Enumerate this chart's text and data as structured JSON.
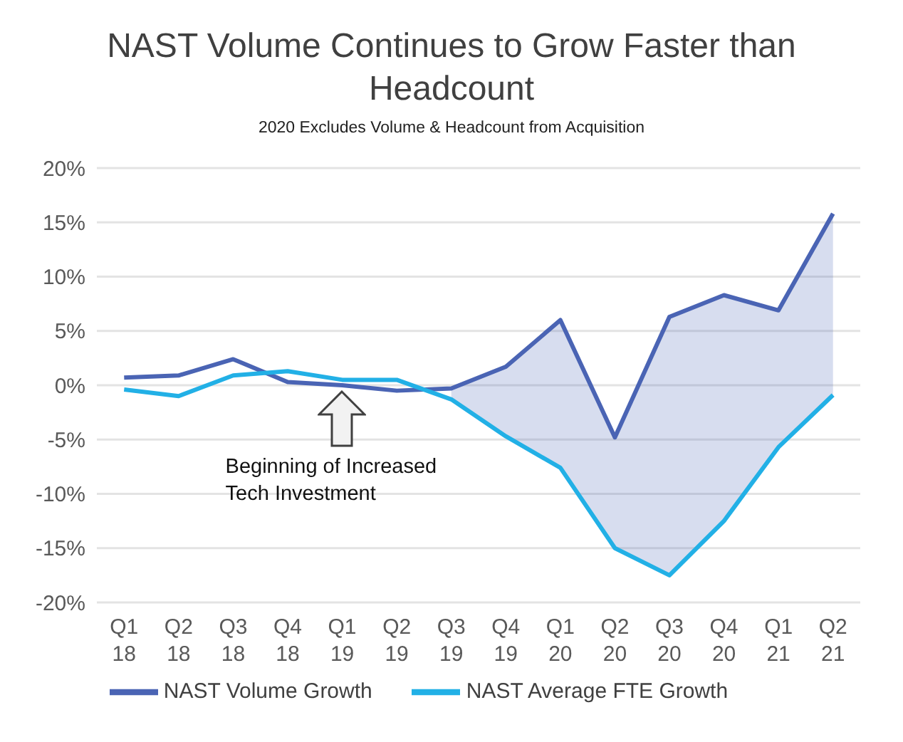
{
  "chart_data": {
    "type": "line",
    "title": "NAST Volume Continues to Grow Faster than Headcount",
    "subtitle": "2020 Excludes Volume & Headcount from Acquisition",
    "categories": [
      "Q1 18",
      "Q2 18",
      "Q3 18",
      "Q4 18",
      "Q1 19",
      "Q2 19",
      "Q3 19",
      "Q4 19",
      "Q1 20",
      "Q2 20",
      "Q3 20",
      "Q4 20",
      "Q1 21",
      "Q2 21"
    ],
    "series": [
      {
        "name": "NAST Volume Growth",
        "color": "#4a64b4",
        "values": [
          0.7,
          0.9,
          2.4,
          0.3,
          0.0,
          -0.5,
          -0.3,
          1.7,
          6.0,
          -4.8,
          6.3,
          8.3,
          6.9,
          15.8
        ],
        "lower": [
          null,
          null,
          null,
          null,
          null,
          null,
          -1.3,
          -4.7,
          -7.6,
          -15.0,
          -17.5,
          -12.5,
          -5.7,
          -0.9
        ],
        "upper": [
          null,
          null,
          null,
          null,
          null,
          null,
          -0.3,
          1.7,
          6.0,
          -4.8,
          6.3,
          8.3,
          6.9,
          15.8
        ]
      },
      {
        "name": "NAST Average FTE Growth",
        "color": "#22b0e6",
        "values": [
          -0.4,
          -1.0,
          0.9,
          1.3,
          0.5,
          0.5,
          -1.3,
          -4.7,
          -7.6,
          -15.0,
          -17.5,
          -12.5,
          -5.7,
          -0.9
        ]
      }
    ],
    "ylim": [
      -20,
      20
    ],
    "yticks": [
      {
        "value": -20,
        "label": "-20%"
      },
      {
        "value": -15,
        "label": "-15%"
      },
      {
        "value": -10,
        "label": "-10%"
      },
      {
        "value": -5,
        "label": "-5%"
      },
      {
        "value": 0,
        "label": "0%"
      },
      {
        "value": 5,
        "label": "5%"
      },
      {
        "value": 10,
        "label": "10%"
      },
      {
        "value": 15,
        "label": "15%"
      },
      {
        "value": 20,
        "label": "20%"
      }
    ],
    "grid": "y",
    "legend": "bottom",
    "marker": "none",
    "line_style": "solid",
    "annotations": [
      "Beginning of Increased Tech Investment"
    ]
  }
}
